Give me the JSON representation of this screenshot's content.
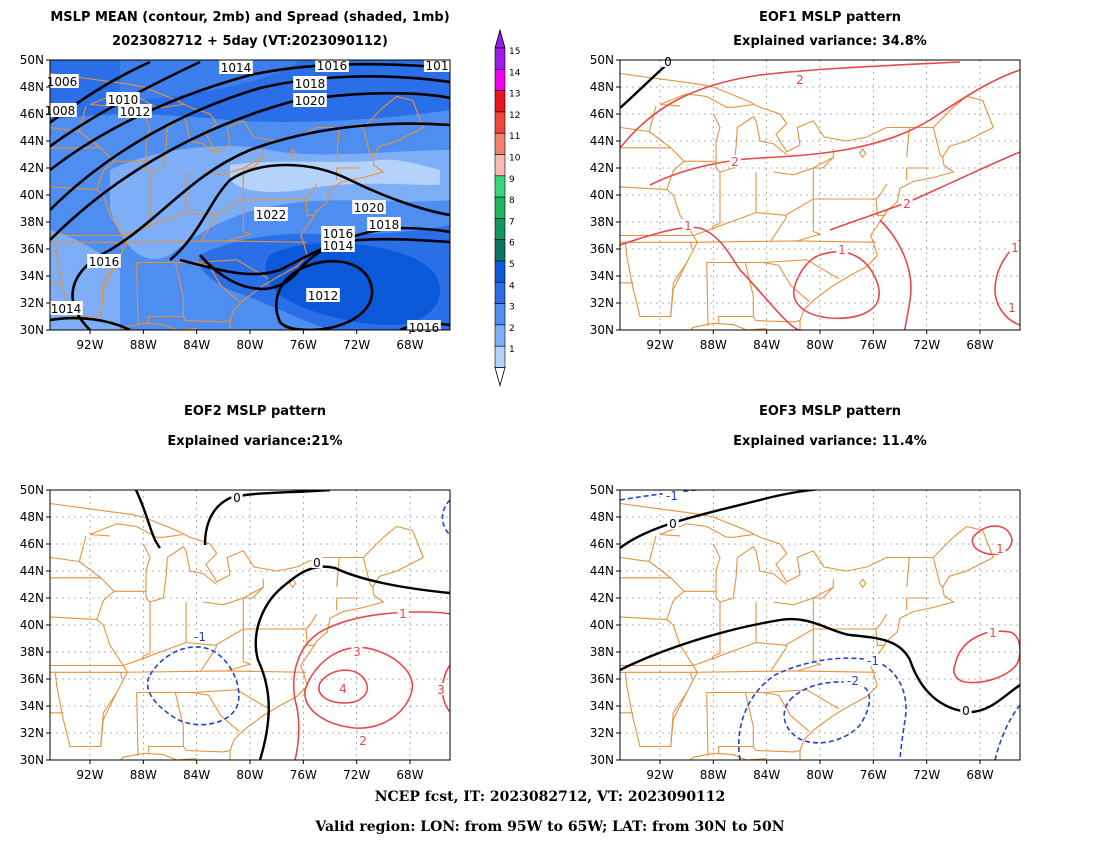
{
  "panels": [
    {
      "key": "mean",
      "title_line1": "MSLP MEAN (contour, 2mb) and Spread (shaded, 1mb)",
      "title_line2": "2023082712 + 5day (VT:2023090112)",
      "contour_labels": [
        "1006",
        "1008",
        "1010",
        "1012",
        "1014",
        "1016",
        "1018",
        "1020",
        "1022",
        "1020",
        "1018",
        "1016",
        "1014",
        "1012",
        "1016",
        "1014",
        "1016",
        "101"
      ]
    },
    {
      "key": "eof1",
      "title_line1": "EOF1 MSLP pattern",
      "title_line2": "Explained variance: 34.8%",
      "contour_labels": [
        "0",
        "2",
        "2",
        "1",
        "1",
        "2",
        "1",
        "1"
      ]
    },
    {
      "key": "eof2",
      "title_line1": "EOF2 MSLP pattern",
      "title_line2": "Explained variance:21%",
      "contour_labels": [
        "0",
        "0",
        "1",
        "-1",
        "3",
        "4",
        "3",
        "2"
      ]
    },
    {
      "key": "eof3",
      "title_line1": "EOF3 MSLP pattern",
      "title_line2": "Explained variance: 11.4%",
      "contour_labels": [
        "-1",
        "0",
        "1",
        "1",
        "-1",
        "-2",
        "0"
      ]
    }
  ],
  "axes": {
    "lat_labels": [
      "50N",
      "48N",
      "46N",
      "44N",
      "42N",
      "40N",
      "38N",
      "36N",
      "34N",
      "32N",
      "30N"
    ],
    "lon_labels": [
      "92W",
      "88W",
      "84W",
      "80W",
      "76W",
      "72W",
      "68W"
    ]
  },
  "colorbar": {
    "labels": [
      "15",
      "14",
      "13",
      "12",
      "11",
      "10",
      "9",
      "8",
      "7",
      "6",
      "5",
      "4",
      "3",
      "2",
      "1"
    ],
    "colors": [
      "#9b1be8",
      "#ee00ee",
      "#e8141e",
      "#f0463c",
      "#f0826e",
      "#f9b9b1",
      "#38d67c",
      "#20b460",
      "#139660",
      "#0d7466",
      "#0b58d8",
      "#2a6ee8",
      "#4d8ef0",
      "#7eaef5",
      "#b5d2fa"
    ]
  },
  "footer": {
    "line1": "NCEP fcst, IT: 2023082712, VT: 2023090112",
    "line2": "Valid region: LON: from 95W to 65W; LAT: from 30N to 50N"
  },
  "colors": {
    "map_outline": "#e8913c",
    "contour_positive": "#e84848",
    "contour_negative": "#2244cc",
    "contour_zero": "#000000",
    "mean_contour": "#000000"
  }
}
